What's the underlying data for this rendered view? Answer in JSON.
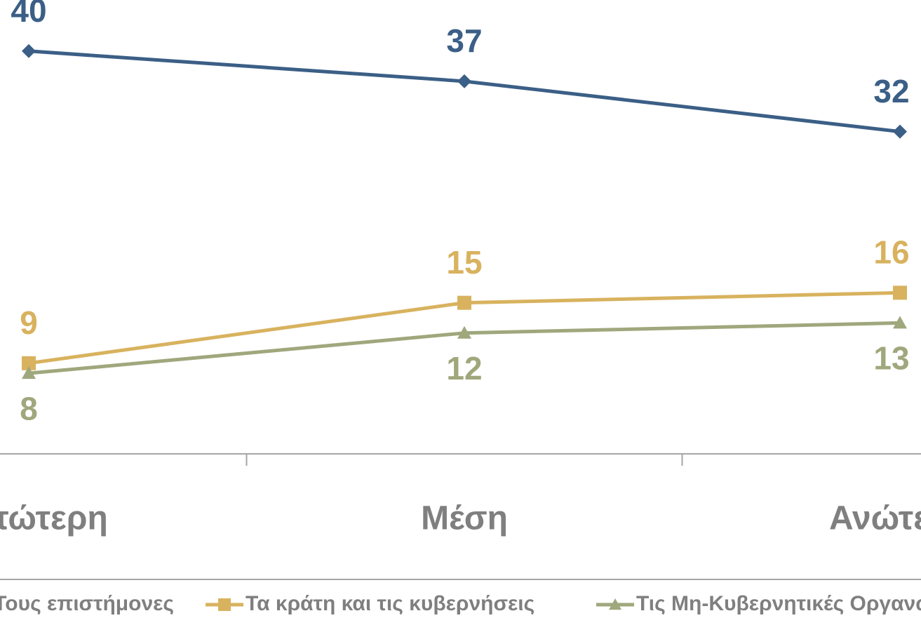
{
  "chart_data": {
    "type": "line",
    "categories": [
      "Κατώτερη",
      "Μέση",
      "Ανώτερη"
    ],
    "series": [
      {
        "name": "Τους επιστήμονες",
        "color": "#3b5f86",
        "marker": "diamond",
        "label_side": "above",
        "values": [
          40,
          37,
          32
        ]
      },
      {
        "name": "Τα κράτη και τις κυβερνήσεις",
        "color": "#d8b25e",
        "marker": "square",
        "label_side": "above",
        "values": [
          9,
          15,
          16
        ]
      },
      {
        "name": "Τις Μη-Κυβερνητικές Οργανώσεις",
        "color": "#9fa77c",
        "marker": "triangle",
        "label_side": "below",
        "values": [
          8,
          12,
          13
        ]
      }
    ],
    "ylim": [
      0,
      45
    ],
    "legend": "bottom"
  }
}
